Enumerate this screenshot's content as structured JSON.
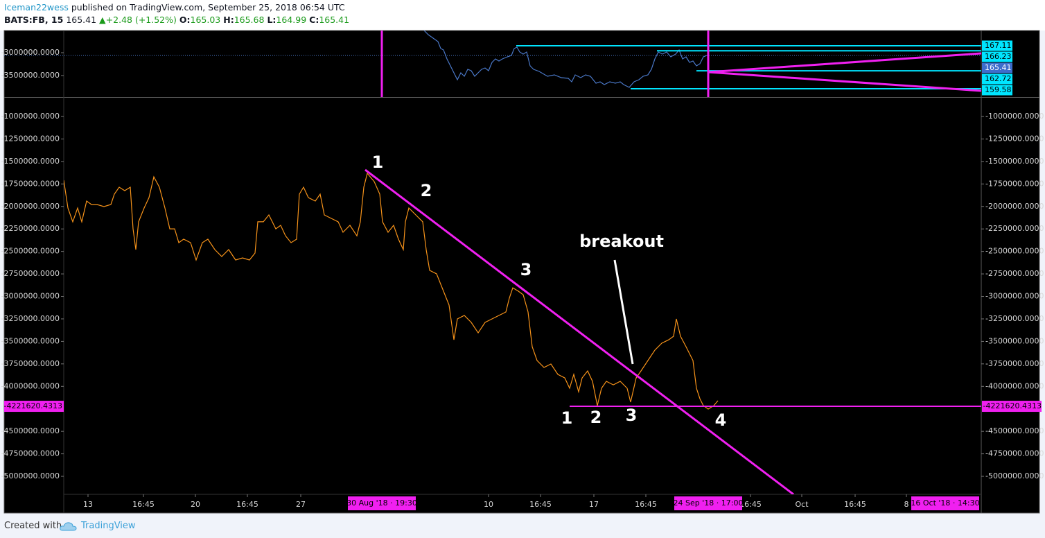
{
  "header": {
    "author": "Iceman22wess",
    "published": "published on TradingView.com, September 25, 2018 06:54 UTC",
    "symbol": "BATS:FB, 15",
    "last": "165.41",
    "change": "+2.48 (+1.52%)",
    "ohlc": [
      {
        "key": "O:",
        "value": "165.03"
      },
      {
        "key": "H:",
        "value": "165.68"
      },
      {
        "key": "L:",
        "value": "164.99"
      },
      {
        "key": "C:",
        "value": "165.41"
      }
    ]
  },
  "chart_data": [
    {
      "type": "line",
      "xlim": [
        0,
        1324
      ],
      "ylim": [
        -3970000,
        -2515000
      ],
      "yticks": [
        {
          "value": -3000000,
          "label": "-3000000.0000"
        },
        {
          "value": -3500000,
          "label": "-3500000.0000"
        }
      ],
      "y2lim": [
        158.12,
        169.78
      ],
      "x": [
        520,
        526,
        533,
        540,
        544,
        548,
        553,
        558,
        563,
        568,
        573,
        578,
        583,
        588,
        593,
        598,
        603,
        608,
        613,
        618,
        623,
        628,
        633,
        640,
        646,
        650,
        654,
        658,
        663,
        668,
        673,
        678,
        686,
        698,
        708,
        718,
        728,
        733,
        738,
        746,
        753,
        760,
        768,
        774,
        780,
        788,
        796,
        803,
        808,
        816,
        823,
        830,
        836,
        843,
        848,
        853,
        858,
        864,
        870,
        876,
        883,
        888,
        893,
        898,
        903,
        908,
        913,
        918,
        923,
        928
      ],
      "series": [
        {
          "color": "#4a78c8",
          "axis": "y2",
          "values": [
            169.78,
            169.05,
            168.45,
            167.84,
            166.62,
            166.38,
            164.8,
            163.59,
            162.37,
            161.16,
            162.37,
            161.76,
            162.98,
            162.74,
            161.76,
            162.37,
            162.98,
            163.22,
            162.74,
            164.19,
            164.8,
            164.44,
            164.8,
            165.17,
            165.41,
            166.62,
            166.87,
            166.02,
            165.65,
            166.02,
            163.59,
            162.98,
            162.61,
            161.76,
            162.01,
            161.52,
            161.4,
            160.79,
            162.01,
            161.52,
            162.01,
            161.76,
            160.55,
            160.79,
            160.31,
            160.79,
            160.55,
            160.79,
            160.31,
            159.82,
            160.79,
            161.16,
            161.76,
            162.01,
            162.98,
            164.8,
            166.02,
            165.65,
            166.02,
            165.17,
            165.65,
            166.38,
            164.8,
            165.17,
            164.19,
            164.44,
            163.59,
            163.95,
            165.17,
            165.41
          ]
        }
      ],
      "levels": [
        {
          "price": 167.11,
          "x": 653
        },
        {
          "price": 166.23,
          "x": 856
        },
        {
          "price": 162.72,
          "x": 913
        },
        {
          "price": 159.58,
          "x": 818
        }
      ],
      "level_color": "#00e5ff",
      "last": 165.41
    },
    {
      "type": "line",
      "xlim": [
        0,
        1324
      ],
      "ylim": [
        -5200000,
        -792000
      ],
      "yticks": [
        {
          "value": -1000000,
          "label": "-1000000.0000"
        },
        {
          "value": -1250000,
          "label": "-1250000.0000"
        },
        {
          "value": -1500000,
          "label": "-1500000.0000"
        },
        {
          "value": -1750000,
          "label": "-1750000.0000"
        },
        {
          "value": -2000000,
          "label": "-2000000.0000"
        },
        {
          "value": -2250000,
          "label": "-2250000.0000"
        },
        {
          "value": -2500000,
          "label": "-2500000.0000"
        },
        {
          "value": -2750000,
          "label": "-2750000.0000"
        },
        {
          "value": -3000000,
          "label": "-3000000.0000"
        },
        {
          "value": -3250000,
          "label": "-3250000.0000"
        },
        {
          "value": -3500000,
          "label": "-3500000.0000"
        },
        {
          "value": -3750000,
          "label": "-3750000.0000"
        },
        {
          "value": -4000000,
          "label": "-4000000.0000"
        },
        {
          "value": -4500000,
          "label": "-4500000.0000"
        },
        {
          "value": -4750000,
          "label": "-4750000.0000"
        },
        {
          "value": -5000000,
          "label": "-5000000.0000"
        }
      ],
      "xticks": [
        {
          "value": 35,
          "label": "13"
        },
        {
          "value": 115,
          "label": "16:45"
        },
        {
          "value": 190,
          "label": "20"
        },
        {
          "value": 265,
          "label": "16:45"
        },
        {
          "value": 342,
          "label": "27"
        },
        {
          "value": 613,
          "label": "10"
        },
        {
          "value": 688,
          "label": "16:45"
        },
        {
          "value": 765,
          "label": "17"
        },
        {
          "value": 840,
          "label": "16:45"
        },
        {
          "value": 991,
          "label": "16:45"
        },
        {
          "value": 1065,
          "label": "Oct"
        },
        {
          "value": 1142,
          "label": "16:45"
        },
        {
          "value": 1216,
          "label": "8"
        }
      ],
      "markers": [
        {
          "value": 459,
          "label": "30 Aug '18 · 19:30",
          "line": true
        },
        {
          "value": 930,
          "label": "24 Sep '18 · 17:00",
          "line": true
        },
        {
          "value": 1272,
          "label": "16 Oct '18 · 14:30",
          "line": false
        }
      ],
      "marker_color": "#f020f0",
      "x": [
        0,
        6,
        13,
        20,
        26,
        33,
        40,
        48,
        58,
        68,
        73,
        80,
        88,
        96,
        100,
        104,
        108,
        116,
        123,
        130,
        138,
        146,
        153,
        160,
        166,
        173,
        183,
        191,
        200,
        208,
        218,
        228,
        238,
        248,
        258,
        268,
        276,
        280,
        288,
        296,
        306,
        313,
        320,
        328,
        336,
        340,
        346,
        353,
        363,
        370,
        376,
        386,
        396,
        403,
        413,
        423,
        428,
        433,
        438,
        448,
        456,
        460,
        468,
        476,
        483,
        490,
        493,
        498,
        508,
        518,
        523,
        528,
        538,
        548,
        556,
        563,
        568,
        578,
        588,
        598,
        608,
        618,
        628,
        638,
        643,
        648,
        656,
        663,
        670,
        676,
        683,
        693,
        703,
        713,
        723,
        730,
        736,
        743,
        748,
        756,
        763,
        770,
        776,
        783,
        793,
        803,
        813,
        818,
        826,
        833,
        843,
        853,
        863,
        873,
        880,
        884,
        890,
        898,
        908,
        913,
        918,
        923,
        930,
        938,
        944
      ],
      "series": [
        {
          "color": "#f7931a",
          "values": [
            -1709000,
            -2017000,
            -2171000,
            -2017000,
            -2171000,
            -1940000,
            -1979000,
            -1979000,
            -2002000,
            -1979000,
            -1863000,
            -1786000,
            -1825000,
            -1786000,
            -2249000,
            -2480000,
            -2171000,
            -2017000,
            -1902000,
            -1671000,
            -1786000,
            -2017000,
            -2249000,
            -2249000,
            -2403000,
            -2364000,
            -2403000,
            -2595000,
            -2403000,
            -2364000,
            -2480000,
            -2557000,
            -2480000,
            -2595000,
            -2572000,
            -2595000,
            -2518000,
            -2171000,
            -2171000,
            -2094000,
            -2249000,
            -2210000,
            -2326000,
            -2403000,
            -2364000,
            -1863000,
            -1786000,
            -1902000,
            -1940000,
            -1863000,
            -2094000,
            -2133000,
            -2171000,
            -2287000,
            -2210000,
            -2326000,
            -2171000,
            -1786000,
            -1632000,
            -1724000,
            -1863000,
            -2171000,
            -2287000,
            -2210000,
            -2364000,
            -2480000,
            -2171000,
            -2017000,
            -2094000,
            -2171000,
            -2480000,
            -2711000,
            -2749000,
            -2942000,
            -3096000,
            -3482000,
            -3250000,
            -3212000,
            -3289000,
            -3405000,
            -3289000,
            -3250000,
            -3212000,
            -3173000,
            -3019000,
            -2904000,
            -2942000,
            -2981000,
            -3173000,
            -3559000,
            -3713000,
            -3790000,
            -3751000,
            -3867000,
            -3906000,
            -4021000,
            -3867000,
            -4060000,
            -3906000,
            -3828000,
            -3944000,
            -4214000,
            -4021000,
            -3944000,
            -3983000,
            -3944000,
            -4021000,
            -4175000,
            -3906000,
            -3828000,
            -3713000,
            -3597000,
            -3520000,
            -3482000,
            -3443000,
            -3250000,
            -3443000,
            -3559000,
            -3713000,
            -4021000,
            -4137000,
            -4214000,
            -4252000,
            -4214000,
            -4160000
          ]
        }
      ],
      "level": {
        "value": -4221620.4313,
        "x": 730
      },
      "trendline": {
        "x": [
          435,
          1053
        ],
        "values": [
          -1593000,
          -5200000
        ]
      },
      "annotations": [
        "1",
        "2",
        "3",
        "breakout",
        "1",
        "2",
        "3",
        "4"
      ]
    }
  ],
  "footer": {
    "created": "Created with",
    "brand": "TradingView"
  }
}
